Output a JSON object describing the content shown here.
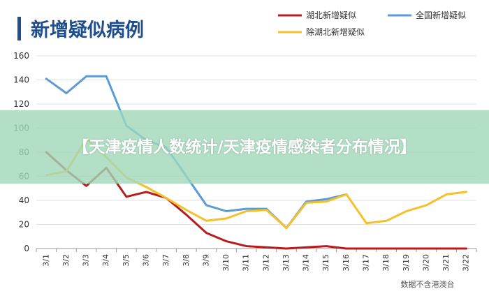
{
  "banner": {
    "text": "【天津疫情人数统计/天津疫情感染者分布情况】"
  },
  "colors": {
    "title_bar": "#1f4e8c",
    "grid": "#e0e0e0",
    "axis": "#999999"
  },
  "chart_data": {
    "type": "line",
    "title": "新增疑似病例",
    "source": "数据不含港澳台",
    "legend_placement": "top-right",
    "grid": true,
    "ylim": [
      0,
      160
    ],
    "yticks": [
      0,
      20,
      40,
      60,
      80,
      100,
      120,
      140,
      160
    ],
    "categories": [
      "3/1",
      "3/2",
      "3/3",
      "3/4",
      "3/5",
      "3/6",
      "3/7",
      "3/8",
      "3/9",
      "3/10",
      "3/11",
      "3/12",
      "3/13",
      "3/14",
      "3/15",
      "3/16",
      "3/17",
      "3/18",
      "3/19",
      "3/20",
      "3/21",
      "3/22"
    ],
    "series": [
      {
        "name": "湖北新增疑似",
        "color": "#b71c1c",
        "values": [
          80,
          65,
          52,
          67,
          43,
          47,
          42,
          28,
          13,
          6,
          2,
          1,
          0,
          1,
          2,
          0,
          0,
          0,
          0,
          0,
          0,
          0
        ]
      },
      {
        "name": "全国新增疑似",
        "color": "#5b9bd5",
        "values": [
          141,
          129,
          143,
          143,
          102,
          90,
          84,
          60,
          36,
          31,
          33,
          33,
          17,
          39,
          41,
          45,
          null,
          null,
          null,
          null,
          null,
          null
        ]
      },
      {
        "name": "除湖北新增疑似",
        "color": "#f5c02a",
        "values": [
          61,
          64,
          91,
          76,
          59,
          51,
          42,
          32,
          23,
          25,
          31,
          32,
          17,
          38,
          39,
          45,
          21,
          23,
          31,
          36,
          45,
          47
        ]
      }
    ]
  }
}
